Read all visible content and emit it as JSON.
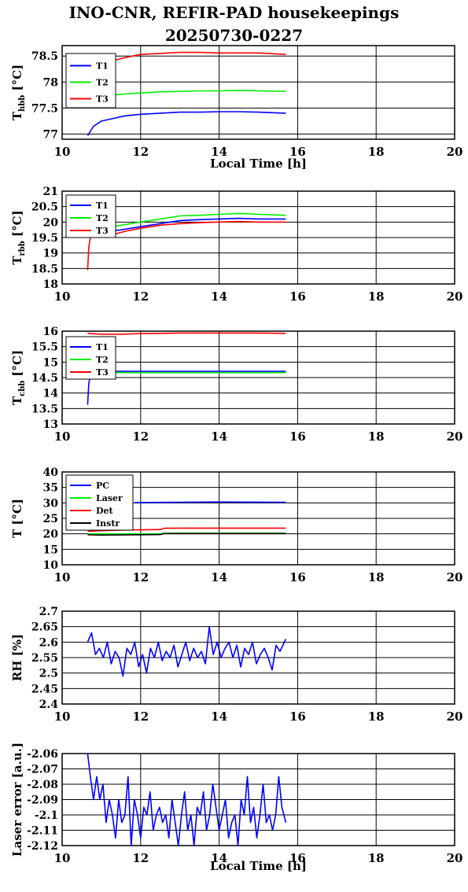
{
  "title_line1": "INO-CNR, REFIR-PAD housekeepings",
  "title_line2": "20250730-0227",
  "colors": {
    "blue": "#0000ff",
    "green": "#00ee00",
    "red": "#ff0000",
    "black": "#000000"
  },
  "chart_data": [
    {
      "type": "line",
      "ylabel": "T",
      "ylabel_sub": "hbb",
      "ylabel_unit": "[°C]",
      "xlabel": "Local Time [h]",
      "xlim": [
        10,
        20
      ],
      "ylim": [
        76.9,
        78.7
      ],
      "yticks": [
        "77",
        "77.5",
        "78",
        "78.5"
      ],
      "yticks_v": [
        77,
        77.5,
        78,
        78.5
      ],
      "xticks": [
        "10",
        "12",
        "14",
        "16",
        "18",
        "20"
      ],
      "legend": "top-left",
      "series": [
        {
          "name": "T1",
          "color": "#0000ff",
          "x": [
            10.65,
            10.8,
            11.0,
            11.3,
            11.6,
            12.0,
            12.5,
            13.0,
            13.5,
            14.0,
            14.5,
            15.0,
            15.7
          ],
          "y": [
            76.97,
            77.15,
            77.25,
            77.3,
            77.35,
            77.38,
            77.4,
            77.42,
            77.42,
            77.43,
            77.43,
            77.42,
            77.4
          ]
        },
        {
          "name": "T2",
          "color": "#00ee00",
          "x": [
            10.65,
            10.8,
            11.0,
            11.3,
            11.6,
            12.0,
            12.5,
            13.0,
            13.5,
            14.0,
            14.5,
            15.0,
            15.7
          ],
          "y": [
            77.52,
            77.62,
            77.7,
            77.75,
            77.77,
            77.79,
            77.81,
            77.82,
            77.83,
            77.83,
            77.84,
            77.83,
            77.82
          ]
        },
        {
          "name": "T3",
          "color": "#ff0000",
          "x": [
            11.35,
            11.5,
            11.8,
            12.0,
            12.5,
            13.0,
            13.5,
            14.0,
            14.5,
            15.0,
            15.7
          ],
          "y": [
            78.42,
            78.45,
            78.5,
            78.53,
            78.55,
            78.57,
            78.57,
            78.56,
            78.56,
            78.56,
            78.53
          ]
        }
      ]
    },
    {
      "type": "line",
      "ylabel": "T",
      "ylabel_sub": "rbb",
      "ylabel_unit": "[°C]",
      "xlim": [
        10,
        20
      ],
      "ylim": [
        18,
        21
      ],
      "yticks": [
        "18",
        "18.5",
        "19",
        "19.5",
        "20",
        "20.5",
        "21"
      ],
      "yticks_v": [
        18,
        18.5,
        19,
        19.5,
        20,
        20.5,
        21
      ],
      "xticks": [
        "10",
        "12",
        "14",
        "16",
        "18",
        "20"
      ],
      "legend": "top-left",
      "series": [
        {
          "name": "T1",
          "color": "#0000ff",
          "x": [
            11.2,
            11.5,
            12.0,
            12.5,
            13.0,
            13.5,
            14.0,
            14.5,
            15.0,
            15.7
          ],
          "y": [
            19.7,
            19.75,
            19.85,
            19.95,
            20.05,
            20.08,
            20.1,
            20.12,
            20.1,
            20.1
          ]
        },
        {
          "name": "T2",
          "color": "#00ee00",
          "x": [
            11.2,
            11.5,
            12.0,
            12.5,
            13.0,
            13.5,
            14.0,
            14.5,
            15.0,
            15.7
          ],
          "y": [
            19.82,
            19.9,
            20.0,
            20.1,
            20.2,
            20.22,
            20.25,
            20.28,
            20.25,
            20.22
          ]
        },
        {
          "name": "T3",
          "color": "#ff0000",
          "x": [
            10.65,
            10.68,
            10.72,
            10.76,
            10.8,
            11.0,
            11.3,
            11.6,
            12.0,
            12.5,
            13.0,
            13.5,
            14.0,
            14.5,
            15.0,
            15.7
          ],
          "y": [
            18.45,
            19.2,
            19.5,
            19.6,
            19.52,
            19.55,
            19.6,
            19.7,
            19.8,
            19.9,
            19.95,
            19.98,
            20.0,
            20.02,
            20.0,
            20.0
          ]
        }
      ]
    },
    {
      "type": "line",
      "ylabel": "T",
      "ylabel_sub": "cbb",
      "ylabel_unit": "[°C]",
      "xlim": [
        10,
        20
      ],
      "ylim": [
        13,
        16
      ],
      "yticks": [
        "13",
        "13.5",
        "14",
        "14.5",
        "15",
        "15.5",
        "16"
      ],
      "yticks_v": [
        13,
        13.5,
        14,
        14.5,
        15,
        15.5,
        16
      ],
      "xticks": [
        "10",
        "12",
        "14",
        "16",
        "18",
        "20"
      ],
      "legend": "top-left",
      "series": [
        {
          "name": "T1",
          "color": "#0000ff",
          "x": [
            10.65,
            10.68,
            10.72,
            10.78,
            11.3,
            11.6,
            12.0,
            12.5,
            13.0,
            13.5,
            14.0,
            14.5,
            15.0,
            15.7
          ],
          "y": [
            13.62,
            14.3,
            14.6,
            14.7,
            14.7,
            14.7,
            14.7,
            14.7,
            14.7,
            14.7,
            14.7,
            14.7,
            14.7,
            14.7
          ]
        },
        {
          "name": "T2",
          "color": "#00ee00",
          "x": [
            10.65,
            10.7,
            10.8,
            11.3,
            11.6,
            12.0,
            12.5,
            13.0,
            13.5,
            14.0,
            14.5,
            15.0,
            15.7
          ],
          "y": [
            14.45,
            14.66,
            14.66,
            14.66,
            14.66,
            14.66,
            14.66,
            14.66,
            14.66,
            14.66,
            14.66,
            14.66,
            14.66
          ]
        },
        {
          "name": "T3",
          "color": "#ff0000",
          "x": [
            10.65,
            11.0,
            11.5,
            12.0,
            12.5,
            13.0,
            13.5,
            14.0,
            14.5,
            15.0,
            15.7
          ],
          "y": [
            15.93,
            15.9,
            15.9,
            15.92,
            15.93,
            15.94,
            15.94,
            15.94,
            15.94,
            15.94,
            15.93
          ]
        }
      ]
    },
    {
      "type": "line",
      "ylabel": "T [°C]",
      "xlim": [
        10,
        20
      ],
      "ylim": [
        10,
        40
      ],
      "yticks": [
        "10",
        "15",
        "20",
        "25",
        "30",
        "35",
        "40"
      ],
      "yticks_v": [
        10,
        15,
        20,
        25,
        30,
        35,
        40
      ],
      "xticks": [
        "10",
        "12",
        "14",
        "16",
        "18",
        "20"
      ],
      "legend": "top-left",
      "series": [
        {
          "name": "PC",
          "color": "#0000ff",
          "x": [
            11.85,
            12.5,
            13.0,
            14.0,
            15.0,
            15.7
          ],
          "y": [
            30.1,
            30.15,
            30.2,
            30.3,
            30.25,
            30.2
          ]
        },
        {
          "name": "Laser",
          "color": "#00ee00",
          "x": [
            10.65,
            11.0,
            12.0,
            12.5,
            12.6,
            13.0,
            14.0,
            15.0,
            15.7
          ],
          "y": [
            20.0,
            20.0,
            20.0,
            20.0,
            20.2,
            20.2,
            20.2,
            20.2,
            20.2
          ]
        },
        {
          "name": "Det",
          "color": "#ff0000",
          "x": [
            10.65,
            11.0,
            11.5,
            12.0,
            12.5,
            12.6,
            13.0,
            14.0,
            15.0,
            15.7
          ],
          "y": [
            20.8,
            21.0,
            21.2,
            21.3,
            21.4,
            21.8,
            21.85,
            21.85,
            21.85,
            21.85
          ]
        },
        {
          "name": "Instr",
          "color": "#000000",
          "x": [
            10.65,
            11.0,
            12.0,
            12.5,
            12.6,
            13.0,
            14.0,
            15.0,
            15.7
          ],
          "y": [
            19.7,
            19.6,
            19.7,
            19.75,
            20.1,
            20.1,
            20.1,
            20.1,
            20.1
          ]
        }
      ]
    },
    {
      "type": "line",
      "ylabel": "RH [%]",
      "xlim": [
        10,
        20
      ],
      "ylim": [
        2.4,
        2.7
      ],
      "yticks": [
        "2.4",
        "2.45",
        "2.5",
        "2.55",
        "2.6",
        "2.65",
        "2.7"
      ],
      "yticks_v": [
        2.4,
        2.45,
        2.5,
        2.55,
        2.6,
        2.65,
        2.7
      ],
      "xticks": [
        "10",
        "12",
        "14",
        "16",
        "18",
        "20"
      ],
      "series": [
        {
          "name": "RH",
          "color": "#0000ff",
          "x": [
            10.65,
            10.75,
            10.85,
            10.95,
            11.05,
            11.15,
            11.25,
            11.35,
            11.45,
            11.55,
            11.65,
            11.75,
            11.85,
            11.95,
            12.05,
            12.15,
            12.25,
            12.35,
            12.45,
            12.55,
            12.65,
            12.75,
            12.85,
            12.95,
            13.05,
            13.15,
            13.25,
            13.35,
            13.45,
            13.55,
            13.65,
            13.75,
            13.85,
            13.95,
            14.05,
            14.15,
            14.25,
            14.35,
            14.45,
            14.55,
            14.65,
            14.75,
            14.85,
            14.95,
            15.05,
            15.15,
            15.25,
            15.35,
            15.45,
            15.55,
            15.7
          ],
          "y": [
            2.6,
            2.63,
            2.56,
            2.58,
            2.55,
            2.6,
            2.53,
            2.57,
            2.55,
            2.49,
            2.58,
            2.56,
            2.6,
            2.52,
            2.56,
            2.5,
            2.58,
            2.55,
            2.6,
            2.54,
            2.57,
            2.55,
            2.59,
            2.52,
            2.56,
            2.6,
            2.54,
            2.58,
            2.55,
            2.57,
            2.53,
            2.65,
            2.56,
            2.6,
            2.55,
            2.58,
            2.6,
            2.55,
            2.59,
            2.52,
            2.58,
            2.56,
            2.6,
            2.53,
            2.56,
            2.58,
            2.55,
            2.51,
            2.59,
            2.57,
            2.61
          ]
        }
      ]
    },
    {
      "type": "line",
      "ylabel": "Laser error [a.u.]",
      "xlabel": "Local Time [h]",
      "xlim": [
        10,
        20
      ],
      "ylim": [
        -2.12,
        -2.06
      ],
      "yticks": [
        "-2.12",
        "-2.11",
        "-2.1",
        "-2.09",
        "-2.08",
        "-2.07",
        "-2.06"
      ],
      "yticks_v": [
        -2.12,
        -2.11,
        -2.1,
        -2.09,
        -2.08,
        -2.07,
        -2.06
      ],
      "xticks": [
        "10",
        "12",
        "14",
        "16",
        "18",
        "20"
      ],
      "series": [
        {
          "name": "Laser error",
          "color": "#0000ff",
          "x": [
            10.65,
            10.72,
            10.8,
            10.88,
            10.96,
            11.04,
            11.12,
            11.2,
            11.28,
            11.36,
            11.44,
            11.52,
            11.6,
            11.68,
            11.76,
            11.84,
            11.92,
            12.0,
            12.08,
            12.16,
            12.24,
            12.32,
            12.4,
            12.48,
            12.56,
            12.64,
            12.72,
            12.8,
            12.88,
            12.96,
            13.04,
            13.12,
            13.2,
            13.28,
            13.36,
            13.44,
            13.52,
            13.6,
            13.68,
            13.76,
            13.84,
            13.92,
            14.0,
            14.08,
            14.16,
            14.24,
            14.32,
            14.4,
            14.48,
            14.56,
            14.64,
            14.72,
            14.8,
            14.88,
            14.96,
            15.04,
            15.12,
            15.2,
            15.28,
            15.36,
            15.44,
            15.52,
            15.6,
            15.7
          ],
          "y": [
            -2.06,
            -2.075,
            -2.09,
            -2.075,
            -2.09,
            -2.08,
            -2.105,
            -2.09,
            -2.1,
            -2.115,
            -2.09,
            -2.105,
            -2.1,
            -2.075,
            -2.12,
            -2.09,
            -2.1,
            -2.115,
            -2.095,
            -2.1,
            -2.085,
            -2.11,
            -2.1,
            -2.095,
            -2.105,
            -2.1,
            -2.115,
            -2.09,
            -2.105,
            -2.12,
            -2.1,
            -2.085,
            -2.11,
            -2.1,
            -2.12,
            -2.095,
            -2.1,
            -2.085,
            -2.11,
            -2.1,
            -2.08,
            -2.095,
            -2.11,
            -2.1,
            -2.09,
            -2.115,
            -2.105,
            -2.1,
            -2.12,
            -2.09,
            -2.1,
            -2.075,
            -2.105,
            -2.095,
            -2.115,
            -2.1,
            -2.08,
            -2.105,
            -2.1,
            -2.11,
            -2.1,
            -2.075,
            -2.095,
            -2.105
          ]
        }
      ]
    }
  ]
}
